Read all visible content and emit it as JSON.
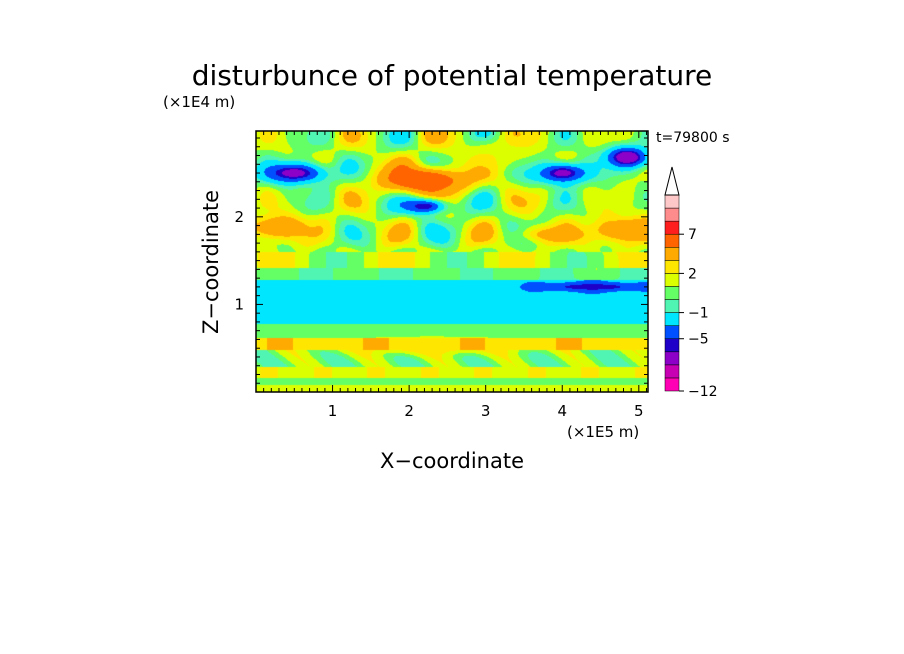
{
  "chart_data": {
    "type": "heatmap",
    "title": "disturbunce of potential temperature",
    "time_label": "t=79800 s",
    "xlabel": "X−coordinate",
    "ylabel": "Z−coordinate",
    "x_unit": "(×1E5 m)",
    "y_unit": "(×1E4 m)",
    "xlim": [
      0,
      5.12
    ],
    "ylim": [
      0,
      2.98
    ],
    "x_ticks": [
      1,
      2,
      3,
      4,
      5
    ],
    "x_tick_labels": [
      "1",
      "2",
      "3",
      "4",
      "5"
    ],
    "y_ticks": [
      1,
      2
    ],
    "y_tick_labels": [
      "1",
      "2"
    ],
    "colorbar": {
      "levels": [
        -12,
        -10,
        -8,
        -6,
        -5,
        -3,
        -1,
        0,
        1,
        2,
        3,
        5,
        7,
        8,
        9
      ],
      "colors": [
        "#ff00b4",
        "#c800b4",
        "#8c00c8",
        "#1e00c8",
        "#0050ff",
        "#00e6ff",
        "#50f5b4",
        "#64ff64",
        "#dcff00",
        "#ffe600",
        "#ffaa00",
        "#ff6400",
        "#ff1e1e",
        "#ff8c8c",
        "#ffc8c8"
      ],
      "labeled_levels": [
        -12,
        -5,
        -1,
        2,
        7
      ],
      "labels": [
        "−12",
        "−5",
        "−1",
        "2",
        "7"
      ],
      "extend": "max"
    },
    "features": [
      {
        "x": 2.2,
        "z": 2.42,
        "sx": 0.55,
        "sz": 0.15,
        "value": 8
      },
      {
        "x": 2.1,
        "z": 2.43,
        "sx": 0.26,
        "sz": 0.07,
        "value": 5
      },
      {
        "x": 2.2,
        "z": 2.12,
        "sx": 0.3,
        "sz": 0.09,
        "value": -6
      },
      {
        "x": 0.5,
        "z": 2.5,
        "sx": 0.42,
        "sz": 0.12,
        "value": -7
      },
      {
        "x": 4.0,
        "z": 2.5,
        "sx": 0.35,
        "sz": 0.12,
        "value": -7
      },
      {
        "x": 4.85,
        "z": 2.68,
        "sx": 0.28,
        "sz": 0.12,
        "value": -8
      },
      {
        "x": 4.9,
        "z": 1.85,
        "sx": 0.55,
        "sz": 0.15,
        "value": 5
      },
      {
        "x": 3.9,
        "z": 1.8,
        "sx": 0.45,
        "sz": 0.1,
        "value": 4
      },
      {
        "x": 0.3,
        "z": 1.88,
        "sx": 0.4,
        "sz": 0.14,
        "value": 5
      },
      {
        "x": 2.3,
        "z": 0.52,
        "sx": 1.3,
        "sz": 0.09,
        "value": 3
      },
      {
        "x": 4.4,
        "z": 1.2,
        "sx": 0.7,
        "sz": 0.05,
        "value": -6
      },
      {
        "x": 3.1,
        "z": 2.7,
        "sx": 0.5,
        "sz": 0.2,
        "value": 2
      }
    ]
  }
}
